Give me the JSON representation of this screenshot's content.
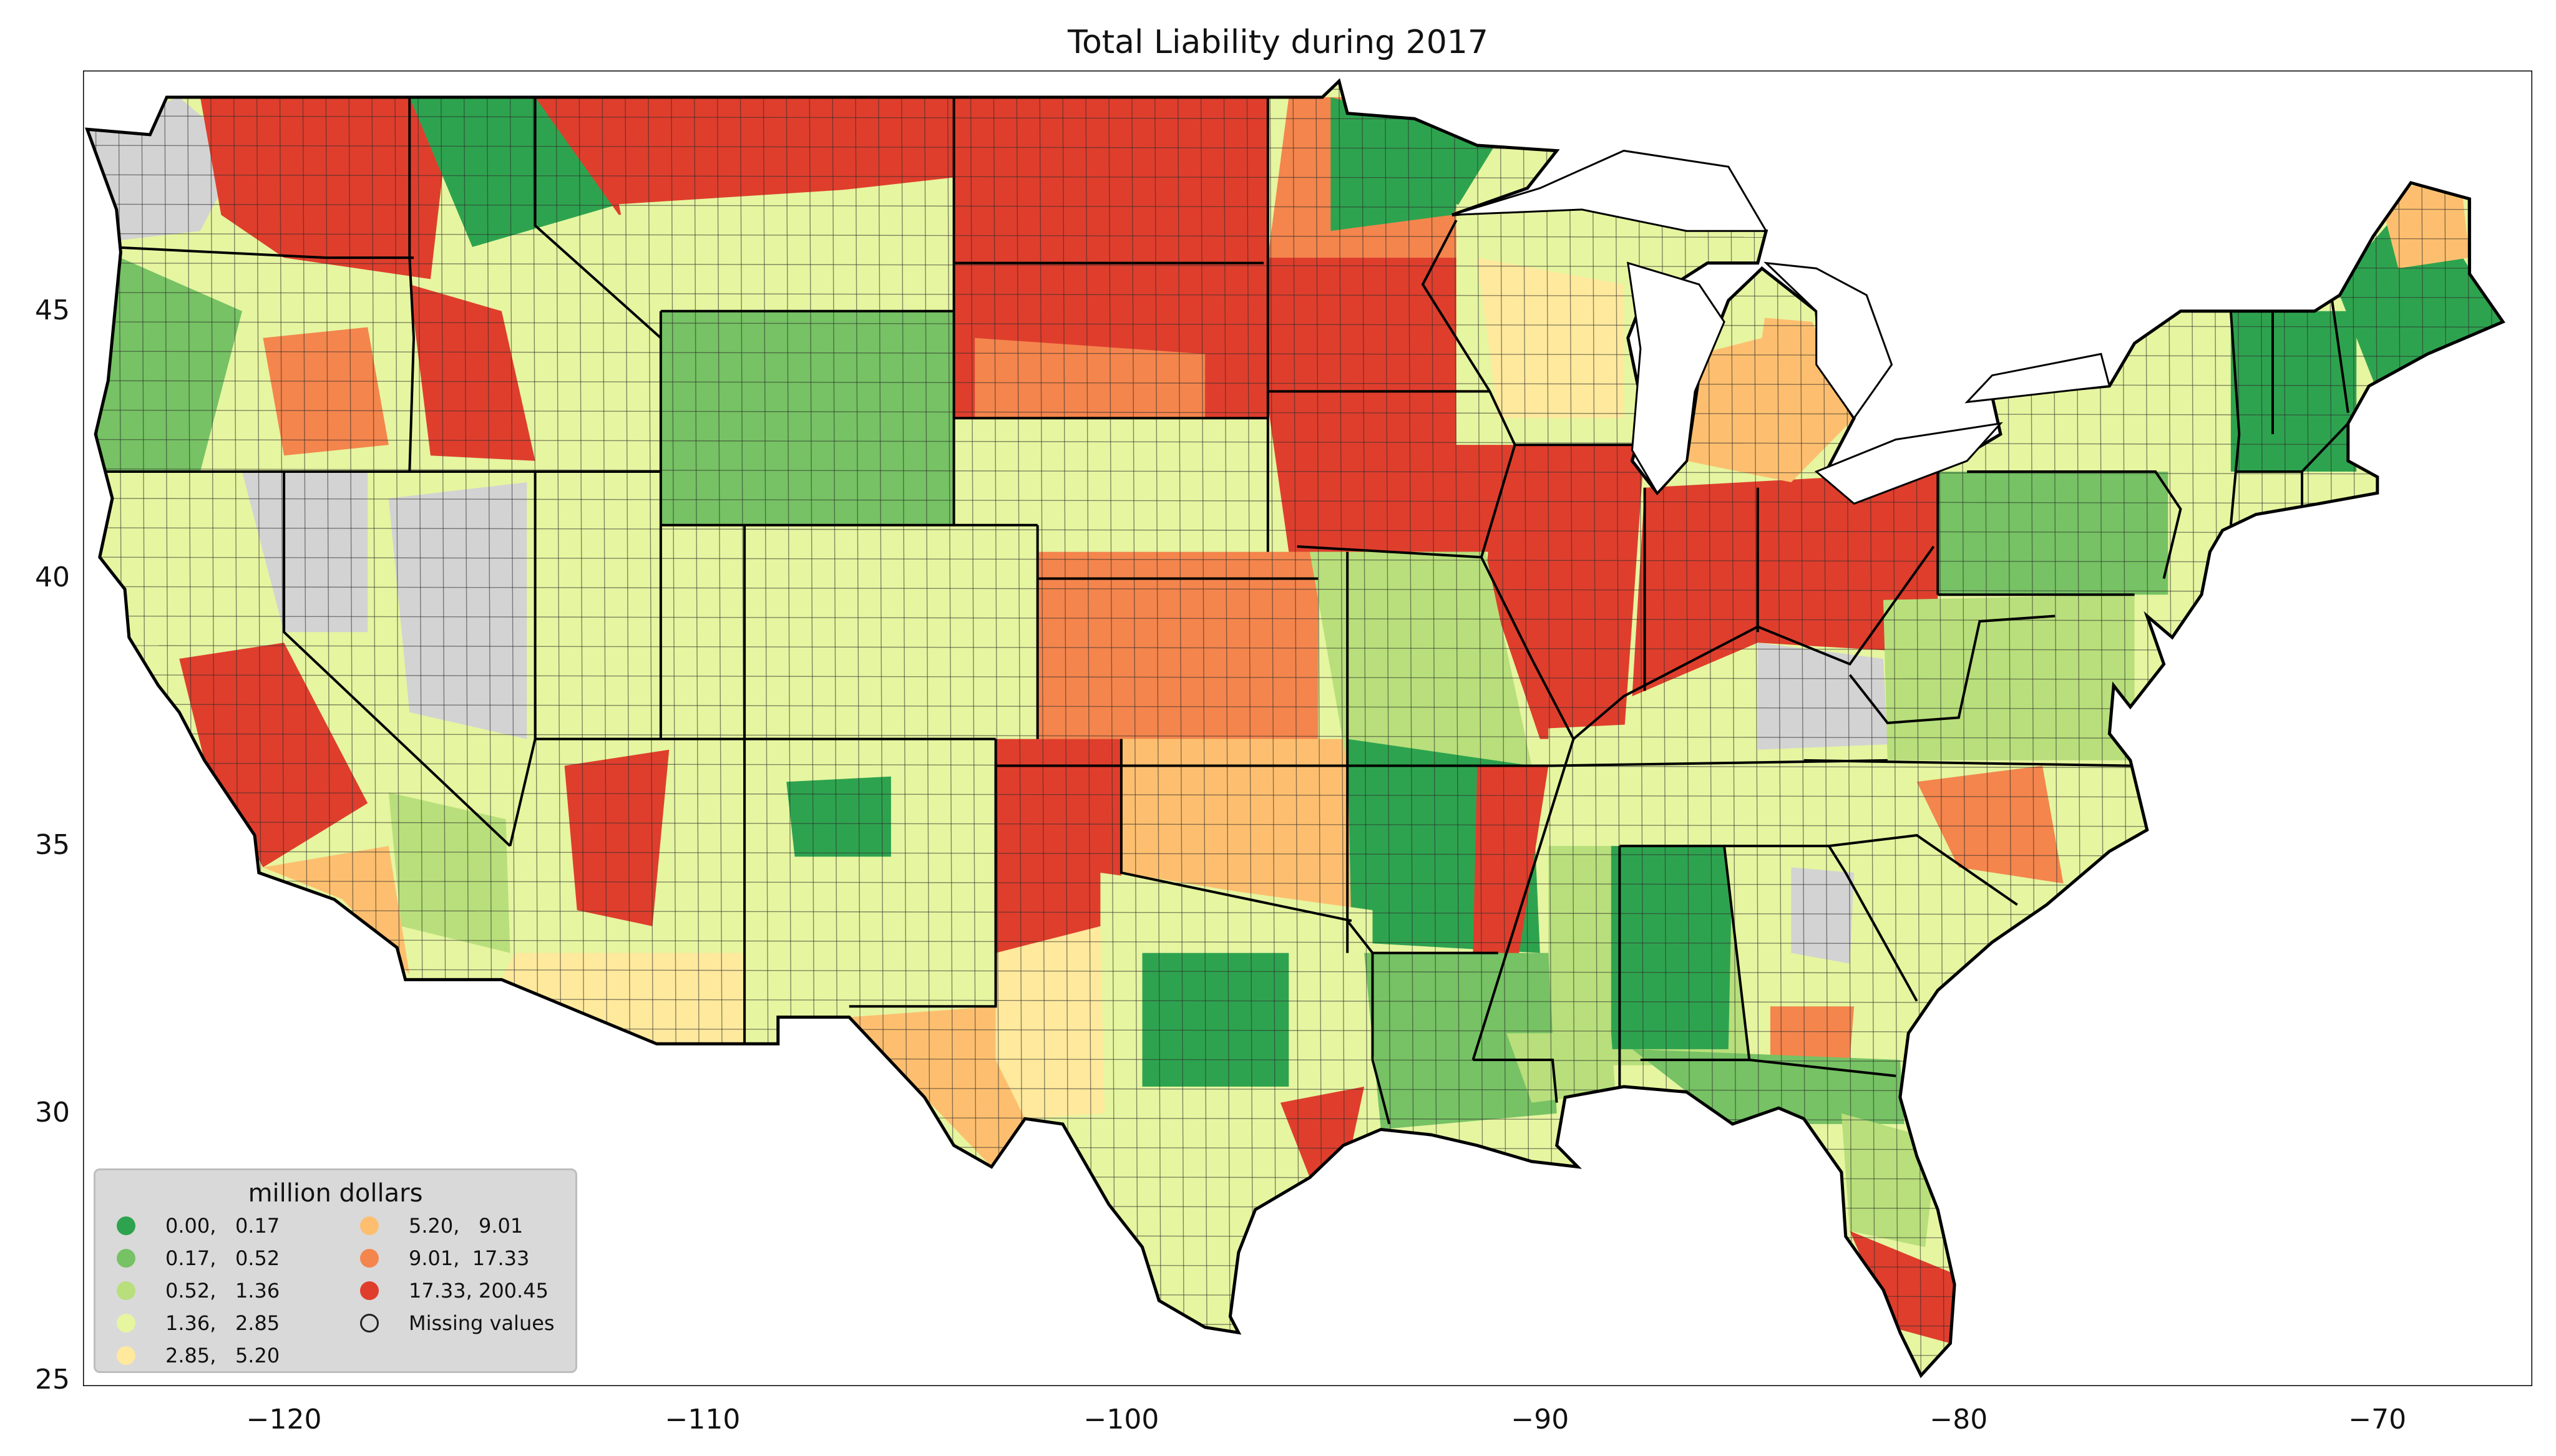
{
  "title": "Total Liability during 2017",
  "map": {
    "projection": "plate carrée (longitude / latitude degrees)",
    "extent": {
      "lon": [
        -124.8,
        -66.3
      ],
      "lat": [
        24.9,
        49.5
      ]
    },
    "x_ticks": [
      {
        "value": -120,
        "label": "−120"
      },
      {
        "value": -110,
        "label": "−110"
      },
      {
        "value": -100,
        "label": "−100"
      },
      {
        "value": -90,
        "label": "−90"
      },
      {
        "value": -80,
        "label": "−80"
      },
      {
        "value": -70,
        "label": "−70"
      }
    ],
    "y_ticks": [
      {
        "value": 25,
        "label": "25"
      },
      {
        "value": 30,
        "label": "30"
      },
      {
        "value": 35,
        "label": "35"
      },
      {
        "value": 40,
        "label": "40"
      },
      {
        "value": 45,
        "label": "45"
      }
    ],
    "state_boundary_color": "#000000",
    "county_boundary_color": "#2b2b2b"
  },
  "legend": {
    "title": "million dollars",
    "items": [
      {
        "label": "0.00,   0.17",
        "color": "#2ea34f"
      },
      {
        "label": "0.17,   0.52",
        "color": "#76c264"
      },
      {
        "label": "0.52,   1.36",
        "color": "#b8df7b"
      },
      {
        "label": "1.36,   2.85",
        "color": "#e6f5a0"
      },
      {
        "label": "2.85,   5.20",
        "color": "#fee99d"
      },
      {
        "label": "5.20,   9.01",
        "color": "#fdbf6f"
      },
      {
        "label": "9.01,  17.33",
        "color": "#f4854d"
      },
      {
        "label": "17.33, 200.45",
        "color": "#df3e2d"
      },
      {
        "label": "Missing values",
        "color": "#d3d3d3"
      }
    ]
  }
}
